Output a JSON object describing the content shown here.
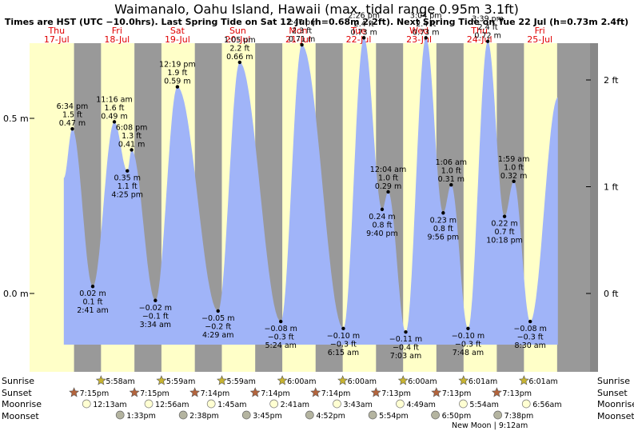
{
  "title": "Waimanalo, Oahu Island, Hawaii (max. tidal range 0.95m 3.1ft)",
  "subtitle": "Times are HST (UTC −10.0hrs). Last Spring Tide on Sat 12 Jul (h=0.68m 2.2ft). Next Spring Tide on Tue 22 Jul (h=0.73m 2.4ft)",
  "days": [
    {
      "dow": "Thu",
      "date": "17-Jul"
    },
    {
      "dow": "Fri",
      "date": "18-Jul"
    },
    {
      "dow": "Sat",
      "date": "19-Jul"
    },
    {
      "dow": "Sun",
      "date": "20-Jul"
    },
    {
      "dow": "Mon",
      "date": "21-Jul"
    },
    {
      "dow": "Tue",
      "date": "22-Jul"
    },
    {
      "dow": "Wed",
      "date": "23-Jul"
    },
    {
      "dow": "Thu",
      "date": "24-Jul"
    },
    {
      "dow": "Fri",
      "date": "25-Jul"
    }
  ],
  "row_labels": {
    "sunrise": "Sunrise",
    "sunset": "Sunset",
    "moonrise": "Moonrise",
    "moonset": "Moonset"
  },
  "moon_phase": "New Moon | 9:12am",
  "colors": {
    "day": "#ffffc8",
    "night": "#999999",
    "tide": "#a0b4f8",
    "daylabel": "#e00000",
    "sun": "#c8b432",
    "sunset": "#b4643c",
    "moonrise": "#ffffd2",
    "moonset": "#b4b4a0"
  },
  "chart_data": {
    "type": "area",
    "title": "Waimanalo, Oahu Island, Hawaii (max. tidal range 0.95m 3.1ft)",
    "x_unit": "hours from 17-Jul 00:00 HST",
    "ylim_m": [
      -0.19,
      0.77
    ],
    "left_ticks": [
      {
        "value": 0.5,
        "label": "0.5 m"
      },
      {
        "value": 0.0,
        "label": "0.0 m"
      }
    ],
    "right_ticks": [
      {
        "value": 0.6096,
        "label": "2 ft"
      },
      {
        "value": 0.3048,
        "label": "1 ft"
      },
      {
        "value": 0.0,
        "label": "0 ft"
      }
    ],
    "extremes": [
      {
        "t": 18.57,
        "h": 0.47,
        "lines": [
          "6:34 pm",
          "1.5 ft",
          "0.47 m"
        ],
        "pos": "above"
      },
      {
        "t": 26.68,
        "h": 0.02,
        "lines": [
          "0.02 m",
          "0.1 ft",
          "2:41 am"
        ],
        "pos": "below"
      },
      {
        "t": 35.27,
        "h": 0.49,
        "lines": [
          "11:16 am",
          "1.6 ft",
          "0.49 m"
        ],
        "pos": "above"
      },
      {
        "t": 40.42,
        "h": 0.35,
        "lines": [
          "0.35 m",
          "1.1 ft",
          "4:25 pm"
        ],
        "pos": "below"
      },
      {
        "t": 42.13,
        "h": 0.41,
        "lines": [
          "6:08 pm",
          "1.3 ft",
          "0.41 m"
        ],
        "pos": "above"
      },
      {
        "t": 51.57,
        "h": -0.02,
        "lines": [
          "−0.02 m",
          "−0.1 ft",
          "3:34 am"
        ],
        "pos": "below"
      },
      {
        "t": 60.32,
        "h": 0.59,
        "lines": [
          "12:19 pm",
          "1.9 ft",
          "0.59 m"
        ],
        "pos": "above"
      },
      {
        "t": 76.48,
        "h": -0.05,
        "lines": [
          "−0.05 m",
          "−0.2 ft",
          "4:29 am"
        ],
        "pos": "below"
      },
      {
        "t": 85.08,
        "h": 0.66,
        "lines": [
          "1:05 pm",
          "2.2 ft",
          "0.66 m"
        ],
        "pos": "above"
      },
      {
        "t": 101.4,
        "h": -0.08,
        "lines": [
          "−0.08 m",
          "−0.3 ft",
          "5:24 am"
        ],
        "pos": "below"
      },
      {
        "t": 109.78,
        "h": 0.71,
        "lines": [
          "1:47 pm",
          "2.3 ft",
          "0.71 m"
        ],
        "pos": "above"
      },
      {
        "t": 126.25,
        "h": -0.1,
        "lines": [
          "−0.10 m",
          "−0.3 ft",
          "6:15 am"
        ],
        "pos": "below"
      },
      {
        "t": 134.43,
        "h": 0.73,
        "lines": [
          "2:26 pm",
          "2.4 ft",
          "0.73 m"
        ],
        "pos": "above"
      },
      {
        "t": 141.67,
        "h": 0.24,
        "lines": [
          "0.24 m",
          "0.8 ft",
          "9:40 pm"
        ],
        "pos": "below"
      },
      {
        "t": 144.07,
        "h": 0.29,
        "lines": [
          "12:04 am",
          "1.0 ft",
          "0.29 m"
        ],
        "pos": "above"
      },
      {
        "t": 151.05,
        "h": -0.11,
        "lines": [
          "−0.11 m",
          "−0.4 ft",
          "7:03 am"
        ],
        "pos": "below"
      },
      {
        "t": 159.07,
        "h": 0.73,
        "lines": [
          "3:04 pm",
          "2.4 ft",
          "0.73 m"
        ],
        "pos": "above"
      },
      {
        "t": 165.93,
        "h": 0.23,
        "lines": [
          "0.23 m",
          "0.8 ft",
          "9:56 pm"
        ],
        "pos": "below"
      },
      {
        "t": 169.1,
        "h": 0.31,
        "lines": [
          "1:06 am",
          "1.0 ft",
          "0.31 m"
        ],
        "pos": "above"
      },
      {
        "t": 175.8,
        "h": -0.1,
        "lines": [
          "−0.10 m",
          "−0.3 ft",
          "7:48 am"
        ],
        "pos": "below"
      },
      {
        "t": 183.65,
        "h": 0.72,
        "lines": [
          "3:39 pm",
          "2.4 ft",
          "0.72 m"
        ],
        "pos": "above"
      },
      {
        "t": 190.3,
        "h": 0.22,
        "lines": [
          "0.22 m",
          "0.7 ft",
          "10:18 pm"
        ],
        "pos": "below"
      },
      {
        "t": 193.98,
        "h": 0.32,
        "lines": [
          "1:59 am",
          "1.0 ft",
          "0.32 m"
        ],
        "pos": "above"
      },
      {
        "t": 200.5,
        "h": -0.08,
        "lines": [
          "−0.08 m",
          "−0.3 ft",
          "8:30 am"
        ],
        "pos": "below"
      }
    ],
    "start": {
      "t": 15.2,
      "h": 0.33
    },
    "end": {
      "t": 211.5,
      "h": 0.56
    },
    "daylight": [
      {
        "sunrise": 5.95,
        "sunset": 19.25
      },
      {
        "sunrise": 29.97,
        "sunset": 43.25
      },
      {
        "sunrise": 53.98,
        "sunset": 67.25
      },
      {
        "sunrise": 77.98,
        "sunset": 91.23
      },
      {
        "sunrise": 102.0,
        "sunset": 115.23
      },
      {
        "sunrise": 126.0,
        "sunset": 139.23
      },
      {
        "sunrise": 150.0,
        "sunset": 163.22
      },
      {
        "sunrise": 174.02,
        "sunset": 187.22
      },
      {
        "sunrise": 198.02,
        "sunset": 211.2
      }
    ],
    "events": {
      "sunrise": [
        {
          "t": 29.97,
          "label": "5:58am"
        },
        {
          "t": 53.98,
          "label": "5:59am"
        },
        {
          "t": 77.98,
          "label": "5:59am"
        },
        {
          "t": 102.0,
          "label": "6:00am"
        },
        {
          "t": 126.0,
          "label": "6:00am"
        },
        {
          "t": 150.0,
          "label": "6:00am"
        },
        {
          "t": 174.02,
          "label": "6:01am"
        },
        {
          "t": 198.02,
          "label": "6:01am"
        }
      ],
      "sunset": [
        {
          "t": 19.25,
          "label": "7:15pm"
        },
        {
          "t": 43.25,
          "label": "7:15pm"
        },
        {
          "t": 67.23,
          "label": "7:14pm"
        },
        {
          "t": 91.23,
          "label": "7:14pm"
        },
        {
          "t": 115.23,
          "label": "7:14pm"
        },
        {
          "t": 139.22,
          "label": "7:13pm"
        },
        {
          "t": 163.22,
          "label": "7:13pm"
        },
        {
          "t": 187.22,
          "label": "7:13pm"
        }
      ],
      "moonrise": [
        {
          "t": 24.22,
          "label": "12:13am"
        },
        {
          "t": 48.93,
          "label": "12:56am"
        },
        {
          "t": 73.75,
          "label": "1:45am"
        },
        {
          "t": 98.68,
          "label": "2:41am"
        },
        {
          "t": 123.72,
          "label": "3:43am"
        },
        {
          "t": 148.82,
          "label": "4:49am"
        },
        {
          "t": 173.9,
          "label": "5:54am"
        },
        {
          "t": 198.93,
          "label": "6:56am"
        }
      ],
      "moonset": [
        {
          "t": 37.55,
          "label": "1:33pm"
        },
        {
          "t": 62.63,
          "label": "2:38pm"
        },
        {
          "t": 87.75,
          "label": "3:45pm"
        },
        {
          "t": 112.87,
          "label": "4:52pm"
        },
        {
          "t": 137.9,
          "label": "5:54pm"
        },
        {
          "t": 162.83,
          "label": "6:50pm"
        },
        {
          "t": 187.63,
          "label": "7:38pm"
        }
      ]
    }
  }
}
